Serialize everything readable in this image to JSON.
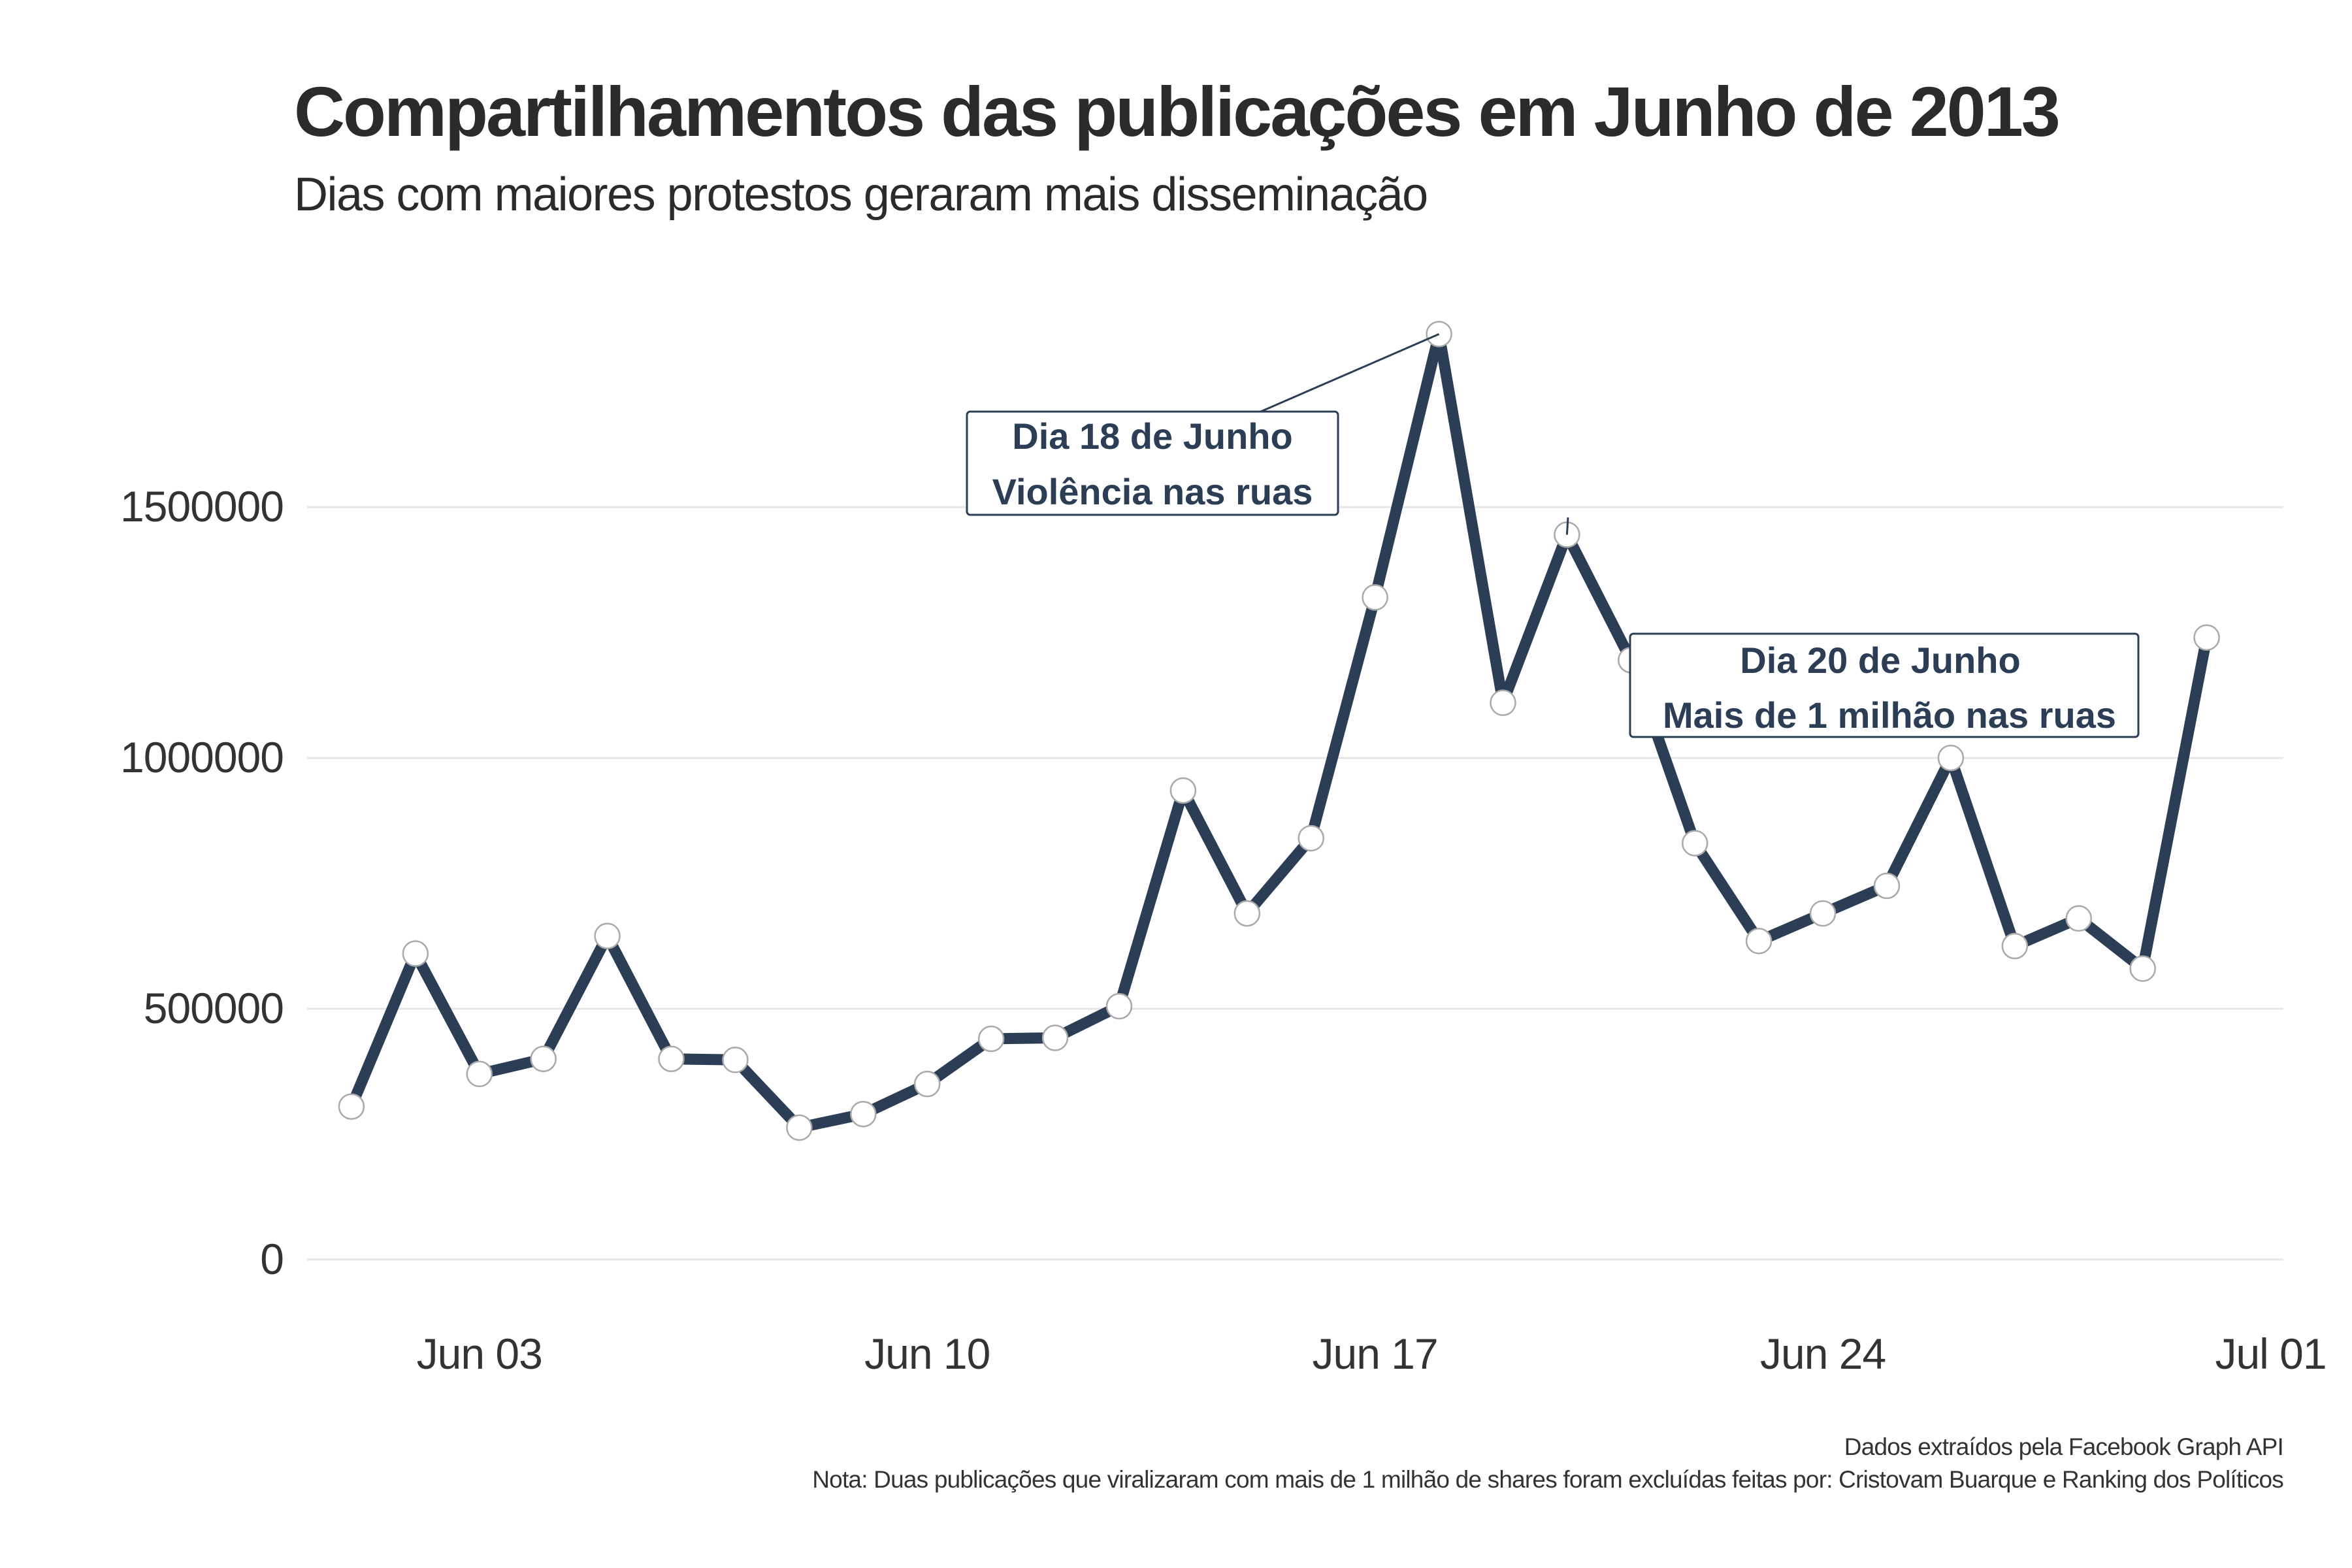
{
  "title": "Compartilhamentos das publicações em Junho de 2013",
  "subtitle": "Dias com maiores protestos geraram mais disseminação",
  "caption_line1": "Dados extraídos pela Facebook Graph API",
  "caption_line2": "Nota: Duas publicações que viralizaram com mais de 1 milhão de shares foram excluídas feitas por: Cristovam Buarque e Ranking dos Políticos",
  "annotations": [
    {
      "line1": "Dia 18 de Junho",
      "line2": "Violência nas ruas",
      "date": "2013-06-18"
    },
    {
      "line1": "Dia 20 de Junho",
      "line2": "Mais de 1 milhão nas ruas",
      "date": "2013-06-20"
    }
  ],
  "colors": {
    "line": "#2c3e55",
    "point_fill": "#ffffff",
    "point_stroke": "#a9a9a9",
    "grid": "#e6e6e6",
    "text": "#2b2b2b"
  },
  "chart_data": {
    "type": "line",
    "title": "Compartilhamentos das publicações em Junho de 2013",
    "subtitle": "Dias com maiores protestos geraram mais disseminação",
    "xlabel": "",
    "ylabel": "",
    "x": [
      "2013-06-01",
      "2013-06-02",
      "2013-06-03",
      "2013-06-04",
      "2013-06-05",
      "2013-06-06",
      "2013-06-07",
      "2013-06-08",
      "2013-06-09",
      "2013-06-10",
      "2013-06-11",
      "2013-06-12",
      "2013-06-13",
      "2013-06-14",
      "2013-06-15",
      "2013-06-16",
      "2013-06-17",
      "2013-06-18",
      "2013-06-19",
      "2013-06-20",
      "2013-06-21",
      "2013-06-22",
      "2013-06-23",
      "2013-06-24",
      "2013-06-25",
      "2013-06-26",
      "2013-06-27",
      "2013-06-28",
      "2013-06-29",
      "2013-06-30"
    ],
    "values": [
      305000,
      610000,
      370000,
      400000,
      645000,
      400000,
      398000,
      263000,
      290000,
      350000,
      440000,
      442000,
      505000,
      935000,
      690000,
      840000,
      1320000,
      1845000,
      1110000,
      1445000,
      1195000,
      830000,
      635000,
      690000,
      745000,
      1000000,
      625000,
      680000,
      580000,
      1240000
    ],
    "xlim": [
      "2013-05-31T00:00",
      "2013-07-01T06:00"
    ],
    "ylim": [
      -120000,
      1990000
    ],
    "x_ticks": [
      {
        "date": "2013-06-03",
        "label": "Jun 03"
      },
      {
        "date": "2013-06-10",
        "label": "Jun 10"
      },
      {
        "date": "2013-06-17",
        "label": "Jun 17"
      },
      {
        "date": "2013-06-24",
        "label": "Jun 24"
      },
      {
        "date": "2013-07-01",
        "label": "Jul 01"
      }
    ],
    "y_ticks": [
      0,
      500000,
      1000000,
      1500000
    ],
    "y_tick_labels": [
      "0",
      "500000",
      "1000000",
      "1500000"
    ],
    "grid": true,
    "legend": "none"
  }
}
